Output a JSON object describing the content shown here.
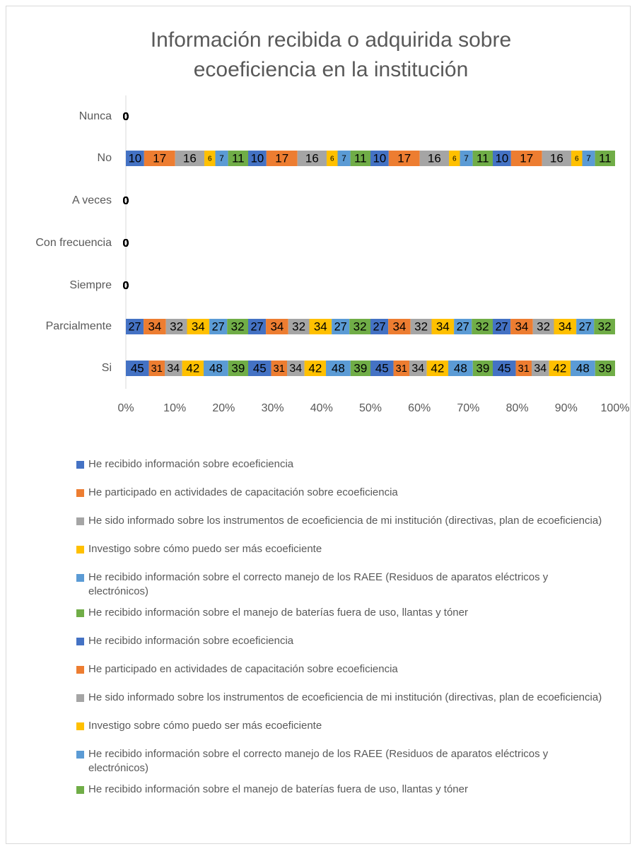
{
  "chart_data": {
    "type": "bar",
    "orientation": "horizontal",
    "stacking": "percent",
    "title": "Información recibida o adquirida sobre ecoeficiencia en la institución",
    "categories": [
      "Nunca",
      "No",
      "A veces",
      "Con frecuencia",
      "Siempre",
      "Parcialmente",
      "Si"
    ],
    "xlim": [
      0,
      100
    ],
    "xticks": [
      {
        "value": 0,
        "label": "0%"
      },
      {
        "value": 10,
        "label": "10%"
      },
      {
        "value": 20,
        "label": "20%"
      },
      {
        "value": 30,
        "label": "30%"
      },
      {
        "value": 40,
        "label": "40%"
      },
      {
        "value": 50,
        "label": "50%"
      },
      {
        "value": 60,
        "label": "60%"
      },
      {
        "value": 70,
        "label": "70%"
      },
      {
        "value": 80,
        "label": "80%"
      },
      {
        "value": 90,
        "label": "90%"
      },
      {
        "value": 100,
        "label": "100%"
      }
    ],
    "grid": false,
    "legend": "bottom",
    "series": [
      {
        "name": "He recibido información sobre  ecoeficiencia",
        "color": "#4472c4",
        "values": [
          0,
          10,
          0,
          0,
          0,
          27,
          45
        ]
      },
      {
        "name": "He participado en actividades de  capacitación sobre ecoeficiencia",
        "color": "#ed7d31",
        "values": [
          0,
          17,
          0,
          0,
          0,
          34,
          31
        ]
      },
      {
        "name": "He sido informado sobre los  instrumentos de ecoeficiencia de mi  institución (directivas, plan de ecoeficiencia)",
        "color": "#a5a5a5",
        "values": [
          0,
          16,
          0,
          0,
          0,
          32,
          34
        ]
      },
      {
        "name": "Investigo sobre cómo puedo ser más  ecoeficiente",
        "color": "#ffc000",
        "values": [
          0,
          6,
          0,
          0,
          0,
          34,
          42
        ]
      },
      {
        "name": "He recibido información sobre el correcto manejo de los RAEE (Residuos de aparatos eléctricos y electrónicos)",
        "color": "#5b9bd5",
        "values": [
          0,
          7,
          0,
          0,
          0,
          27,
          48
        ]
      },
      {
        "name": "He recibido información sobre el manejo de baterías fuera de uso, llantas y tóner",
        "color": "#70ad47",
        "values": [
          0,
          11,
          0,
          0,
          0,
          32,
          39
        ]
      },
      {
        "name": "He recibido información sobre  ecoeficiencia",
        "color": "#4472c4",
        "values": [
          0,
          10,
          0,
          0,
          0,
          27,
          45
        ]
      },
      {
        "name": "He participado en actividades de  capacitación sobre ecoeficiencia",
        "color": "#ed7d31",
        "values": [
          0,
          17,
          0,
          0,
          0,
          34,
          31
        ]
      },
      {
        "name": "He sido informado sobre los  instrumentos de ecoeficiencia de mi  institución (directivas, plan de ecoeficiencia)",
        "color": "#a5a5a5",
        "values": [
          0,
          16,
          0,
          0,
          0,
          32,
          34
        ]
      },
      {
        "name": "Investigo sobre cómo puedo ser más  ecoeficiente",
        "color": "#ffc000",
        "values": [
          0,
          6,
          0,
          0,
          0,
          34,
          42
        ]
      },
      {
        "name": "He recibido información sobre el correcto manejo de los RAEE (Residuos de aparatos eléctricos y electrónicos)",
        "color": "#5b9bd5",
        "values": [
          0,
          7,
          0,
          0,
          0,
          27,
          48
        ]
      },
      {
        "name": "He recibido información sobre el manejo de baterías fuera de uso, llantas y tóner",
        "color": "#70ad47",
        "values": [
          0,
          11,
          0,
          0,
          0,
          32,
          39
        ]
      },
      {
        "color": "#4472c4",
        "values": [
          0,
          10,
          0,
          0,
          0,
          27,
          45
        ]
      },
      {
        "color": "#ed7d31",
        "values": [
          0,
          17,
          0,
          0,
          0,
          34,
          31
        ]
      },
      {
        "color": "#a5a5a5",
        "values": [
          0,
          16,
          0,
          0,
          0,
          32,
          34
        ]
      },
      {
        "color": "#ffc000",
        "values": [
          0,
          6,
          0,
          0,
          0,
          34,
          42
        ]
      },
      {
        "color": "#5b9bd5",
        "values": [
          0,
          7,
          0,
          0,
          0,
          27,
          48
        ]
      },
      {
        "color": "#70ad47",
        "values": [
          0,
          11,
          0,
          0,
          0,
          32,
          39
        ]
      },
      {
        "color": "#4472c4",
        "values": [
          0,
          10,
          0,
          0,
          0,
          27,
          45
        ]
      },
      {
        "color": "#ed7d31",
        "values": [
          0,
          17,
          0,
          0,
          0,
          34,
          31
        ]
      },
      {
        "color": "#a5a5a5",
        "values": [
          0,
          16,
          0,
          0,
          0,
          32,
          34
        ]
      },
      {
        "color": "#ffc000",
        "values": [
          0,
          6,
          0,
          0,
          0,
          34,
          42
        ]
      },
      {
        "color": "#5b9bd5",
        "values": [
          0,
          7,
          0,
          0,
          0,
          27,
          48
        ]
      },
      {
        "color": "#70ad47",
        "values": [
          0,
          11,
          0,
          0,
          0,
          32,
          39
        ]
      }
    ]
  }
}
